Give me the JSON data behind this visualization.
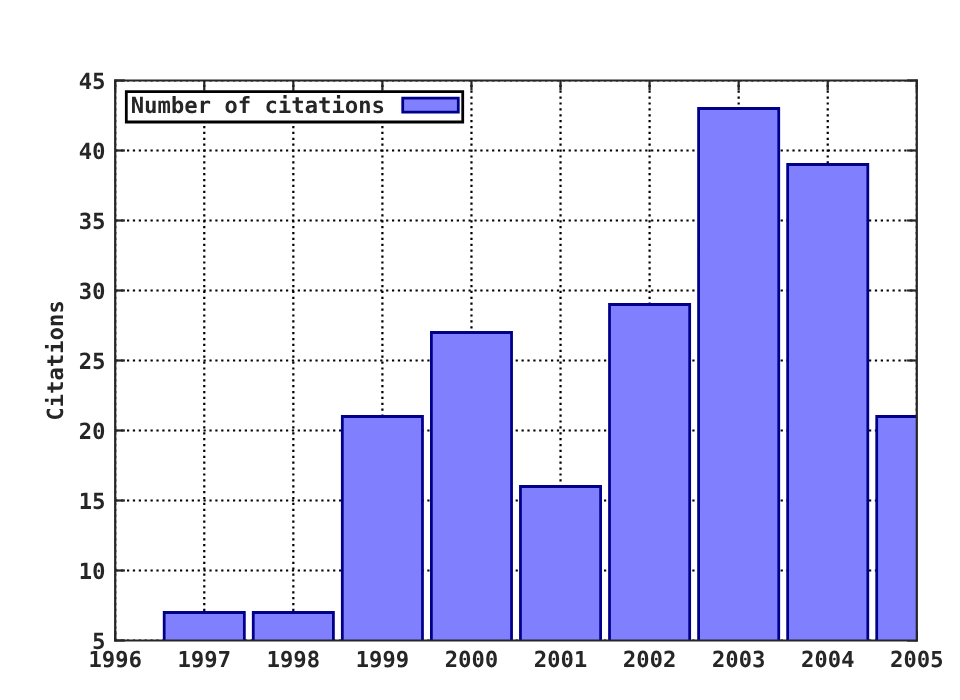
{
  "chart_data": {
    "type": "bar",
    "ylabel": "Citations",
    "x": [
      1997,
      1998,
      1999,
      2000,
      2001,
      2002,
      2003,
      2004,
      2005
    ],
    "series": [
      {
        "name": "Number of citations",
        "color": "#8080ff",
        "values": [
          7,
          7,
          21,
          27,
          16,
          29,
          43,
          39,
          21
        ]
      }
    ],
    "xlim": [
      1996,
      2005
    ],
    "xticks": [
      1996,
      1997,
      1998,
      1999,
      2000,
      2001,
      2002,
      2003,
      2004,
      2005
    ],
    "ylim": [
      5,
      45
    ],
    "yticks": [
      5,
      10,
      15,
      20,
      25,
      30,
      35,
      40,
      45
    ],
    "grid": true,
    "legend": "top left"
  }
}
